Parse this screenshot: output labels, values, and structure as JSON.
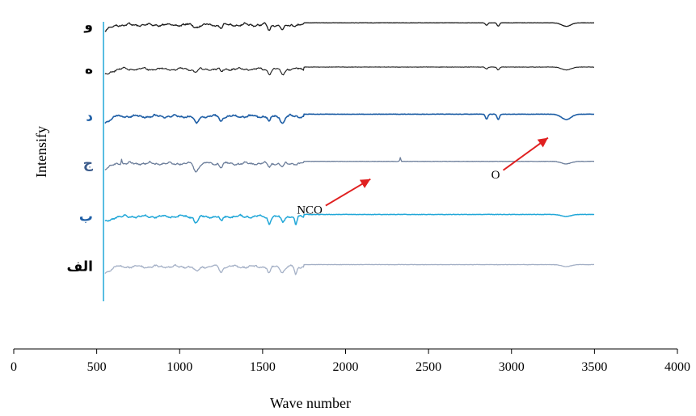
{
  "chart_data": {
    "type": "line",
    "xlabel": "Wave number",
    "ylabel": "Intensify",
    "xlim": [
      0,
      4000
    ],
    "xticks": [
      0,
      500,
      1000,
      1500,
      2000,
      2500,
      3000,
      3500,
      4000
    ],
    "grid": false,
    "series": [
      {
        "name": "و",
        "color": "#1a1a1a",
        "label_color": "#000000",
        "width": 1.3,
        "offset": 0.95,
        "bands": [
          [
            1100,
            0.25,
            18
          ],
          [
            1250,
            0.3,
            12
          ],
          [
            1540,
            0.55,
            12
          ],
          [
            1620,
            0.55,
            15
          ],
          [
            2850,
            0.25,
            10
          ],
          [
            2920,
            0.35,
            10
          ],
          [
            3330,
            0.35,
            40
          ]
        ]
      },
      {
        "name": "ه",
        "color": "#1a1a1a",
        "label_color": "#000000",
        "width": 1.1,
        "offset": 0.8,
        "bands": [
          [
            1100,
            0.3,
            18
          ],
          [
            1250,
            0.3,
            12
          ],
          [
            1540,
            0.5,
            12
          ],
          [
            1620,
            0.55,
            15
          ],
          [
            2850,
            0.2,
            10
          ],
          [
            2920,
            0.3,
            10
          ],
          [
            3330,
            0.3,
            40
          ]
        ]
      },
      {
        "name": "د",
        "color": "#1f5fa6",
        "label_color": "#1f5fa6",
        "width": 1.6,
        "offset": 0.64,
        "bands": [
          [
            1100,
            0.75,
            18
          ],
          [
            1250,
            0.45,
            12
          ],
          [
            1540,
            0.55,
            12
          ],
          [
            1620,
            0.7,
            15
          ],
          [
            2850,
            0.5,
            10
          ],
          [
            2920,
            0.55,
            10
          ],
          [
            3330,
            0.55,
            40
          ]
        ]
      },
      {
        "name": "ج",
        "color": "#6b7d9a",
        "label_color": "#3a5a8a",
        "width": 1.3,
        "offset": 0.48,
        "bands": [
          [
            650,
            -0.5,
            4
          ],
          [
            1100,
            0.8,
            18
          ],
          [
            1250,
            0.35,
            12
          ],
          [
            1540,
            0.35,
            12
          ],
          [
            1620,
            0.35,
            15
          ],
          [
            2330,
            -0.4,
            4
          ],
          [
            3330,
            0.25,
            40
          ]
        ]
      },
      {
        "name": "ب",
        "color": "#21a7d8",
        "label_color": "#1f5fa6",
        "width": 1.5,
        "offset": 0.3,
        "bands": [
          [
            1100,
            0.6,
            18
          ],
          [
            1250,
            0.55,
            12
          ],
          [
            1540,
            0.7,
            12
          ],
          [
            1620,
            0.55,
            15
          ],
          [
            1700,
            0.9,
            10
          ],
          [
            3330,
            0.2,
            40
          ]
        ]
      },
      {
        "name": "الف",
        "color": "#a4b0c6",
        "label_color": "#000000",
        "width": 1.3,
        "offset": 0.13,
        "bands": [
          [
            1100,
            0.55,
            18
          ],
          [
            1250,
            0.6,
            12
          ],
          [
            1540,
            0.7,
            12
          ],
          [
            1620,
            0.55,
            15
          ],
          [
            1700,
            0.8,
            10
          ],
          [
            3330,
            0.2,
            40
          ]
        ]
      }
    ],
    "annotations": [
      {
        "text": "NCO",
        "target_series": "ب",
        "arrow_from": [
          1880,
          0.33
        ],
        "arrow_to": [
          2150,
          0.42
        ],
        "arrow_color": "#e02020"
      },
      {
        "text": "O",
        "target_series": "ج",
        "arrow_from": [
          2950,
          0.45
        ],
        "arrow_to": [
          3220,
          0.56
        ],
        "arrow_color": "#e02020"
      }
    ]
  }
}
